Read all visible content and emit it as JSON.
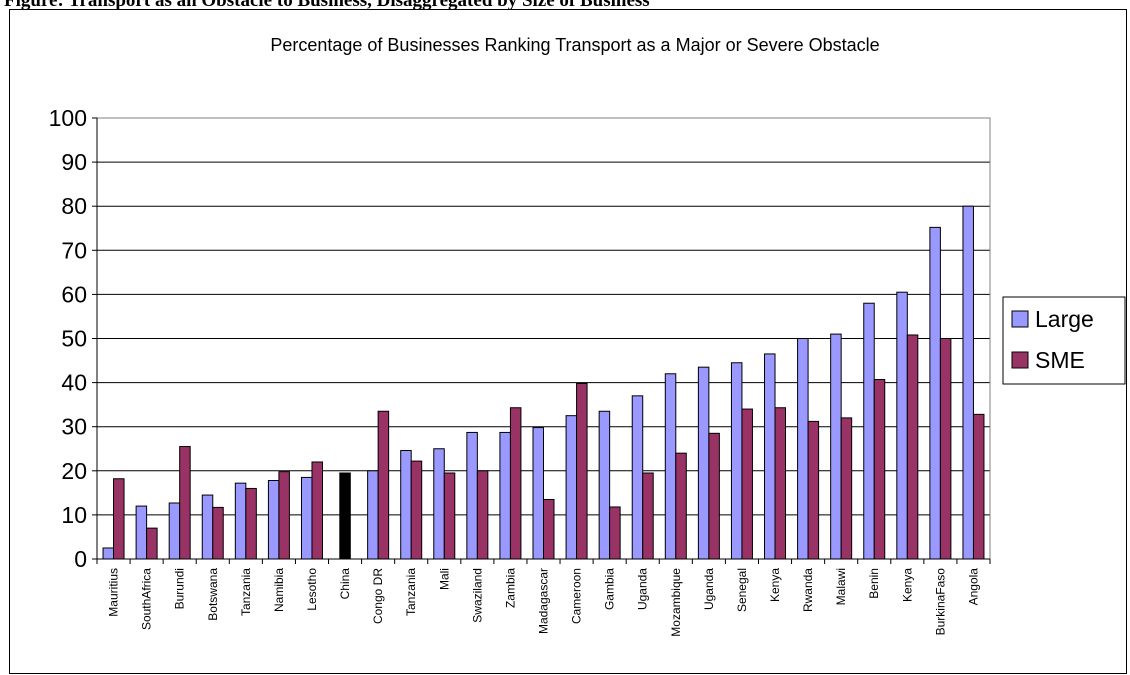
{
  "heading": "Figure: Transport as an Obstacle to Business, Disaggregated by Size of Business",
  "colors": {
    "large": "#9999FF",
    "sme": "#993366",
    "china": "#000000",
    "grid": "#000000"
  },
  "chart_data": {
    "type": "bar",
    "title": "Percentage of Businesses Ranking Transport as a Major or Severe Obstacle",
    "xlabel": "",
    "ylabel": "",
    "ylim": [
      0,
      100
    ],
    "yticks": [
      0,
      10,
      20,
      30,
      40,
      50,
      60,
      70,
      80,
      90,
      100
    ],
    "grid": true,
    "legend_position": "right",
    "categories": [
      "Mauritius",
      "SouthAfrica",
      "Burundi",
      "Botswana",
      "Tanzania",
      "Namibia",
      "Lesotho",
      "China",
      "Congo DR",
      "Tanzania",
      "Mali",
      "Swaziland",
      "Zambia",
      "Madagascar",
      "Cameroon",
      "Gambia",
      "Uganda",
      "Mozambique",
      "Uganda",
      "Senegal",
      "Kenya",
      "Rwanda",
      "Malawi",
      "Benin",
      "Kenya",
      "BurkinaFaso",
      "Angola"
    ],
    "series": [
      {
        "name": "Large",
        "values": [
          2.5,
          12,
          12.7,
          14.5,
          17.2,
          17.8,
          18.5,
          null,
          20,
          24.6,
          25,
          28.7,
          28.7,
          29.8,
          32.5,
          33.5,
          37,
          42,
          43.5,
          44.5,
          46.5,
          50,
          51,
          58,
          60.5,
          75.2,
          80
        ]
      },
      {
        "name": "SME",
        "values": [
          18.2,
          7,
          25.5,
          11.7,
          16,
          19.8,
          22,
          19.5,
          33.5,
          22.2,
          19.5,
          20,
          34.3,
          13.5,
          39.8,
          11.8,
          19.5,
          24,
          28.5,
          34,
          34.3,
          31.2,
          32,
          40.7,
          50.8,
          50,
          32.8
        ]
      }
    ]
  }
}
